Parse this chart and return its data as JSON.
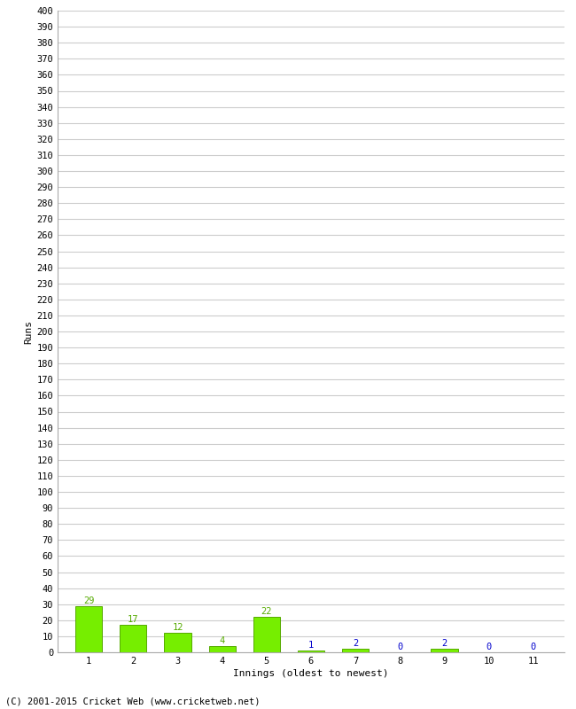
{
  "xlabel": "Innings (oldest to newest)",
  "ylabel": "Runs",
  "categories": [
    "1",
    "2",
    "3",
    "4",
    "5",
    "6",
    "7",
    "8",
    "9",
    "10",
    "11"
  ],
  "values": [
    29,
    17,
    12,
    4,
    22,
    1,
    2,
    0,
    2,
    0,
    0
  ],
  "bar_color": "#76ee00",
  "bar_edge_color": "#55aa00",
  "label_color_green": "#55aa00",
  "label_color_blue": "#0000cc",
  "ytick_step": 10,
  "ymin": 0,
  "ymax": 400,
  "background_color": "#ffffff",
  "grid_color": "#cccccc",
  "footer": "(C) 2001-2015 Cricket Web (www.cricketweb.net)",
  "axis_label_fontsize": 8,
  "tick_fontsize": 7.5,
  "bar_label_fontsize": 7.5,
  "footer_fontsize": 7.5
}
